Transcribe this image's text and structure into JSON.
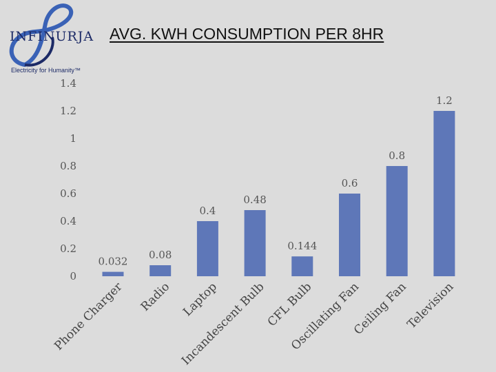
{
  "logo": {
    "wordmark": "INFINURJA",
    "tagline": "Electricity for Humanity™",
    "colors": {
      "navy": "#1c2a66",
      "blue": "#3a62b6"
    }
  },
  "chart_data": {
    "type": "bar",
    "title": "AVG. KWH CONSUMPTION PER 8HR",
    "categories": [
      "Phone Charger",
      "Radio",
      "Laptop",
      "Incandescent Bulb",
      "CFL Bulb",
      "Oscillating Fan",
      "Ceiling Fan",
      "Television"
    ],
    "values": [
      0.032,
      0.08,
      0.4,
      0.48,
      0.144,
      0.6,
      0.8,
      1.2
    ],
    "value_labels": [
      "0.032",
      "0.08",
      "0.4",
      "0.48",
      "0.144",
      "0.6",
      "0.8",
      "1.2"
    ],
    "yticks": [
      "0",
      "0.2",
      "0.4",
      "0.6",
      "0.8",
      "1",
      "1.2",
      "1.4"
    ],
    "ylim": [
      0,
      1.4
    ],
    "xlabel": "",
    "ylabel": "",
    "bar_color": "#5e77b8",
    "grid": false,
    "legend": "none"
  }
}
